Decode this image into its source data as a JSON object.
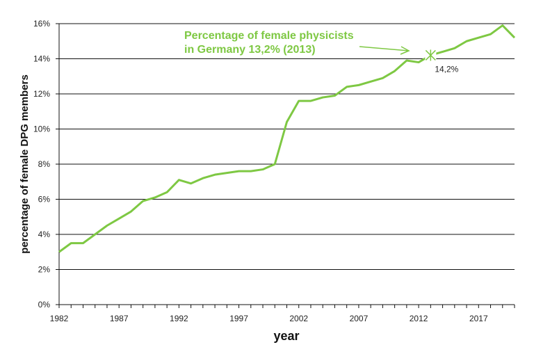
{
  "chart_data": {
    "type": "line",
    "title": "",
    "xlabel": "year",
    "ylabel": "percentage of female  DPG members",
    "xlim": [
      1982,
      2020
    ],
    "ylim": [
      0,
      16
    ],
    "x_ticks": [
      "1982",
      "1987",
      "1992",
      "1997",
      "2002",
      "2007",
      "2012",
      "2017"
    ],
    "y_ticks": [
      "0%",
      "2%",
      "4%",
      "6%",
      "8%",
      "10%",
      "12%",
      "14%",
      "16%"
    ],
    "grid": "horizontal",
    "series_color": "#7ec843",
    "x": [
      1982,
      1983,
      1984,
      1985,
      1986,
      1987,
      1988,
      1989,
      1990,
      1991,
      1992,
      1993,
      1994,
      1995,
      1996,
      1997,
      1998,
      1999,
      2000,
      2001,
      2002,
      2003,
      2004,
      2005,
      2006,
      2007,
      2008,
      2009,
      2010,
      2011,
      2012,
      2013,
      2014,
      2015,
      2016,
      2017,
      2018,
      2019,
      2020
    ],
    "values": [
      3.0,
      3.5,
      3.5,
      4.0,
      4.5,
      4.9,
      5.3,
      5.9,
      6.1,
      6.4,
      7.1,
      6.9,
      7.2,
      7.4,
      7.5,
      7.6,
      7.6,
      7.7,
      8.0,
      10.4,
      11.6,
      11.6,
      11.8,
      11.9,
      12.4,
      12.5,
      12.7,
      12.9,
      13.3,
      13.9,
      13.8,
      14.2,
      14.4,
      14.6,
      15.0,
      15.2,
      15.4,
      15.9,
      15.2
    ],
    "highlight": {
      "x": 2013,
      "y": 14.2,
      "label": "14,2%"
    },
    "annotation": {
      "line1": "Percentage of female physicists",
      "line2": "in Germany 13,2% (2013)"
    }
  }
}
